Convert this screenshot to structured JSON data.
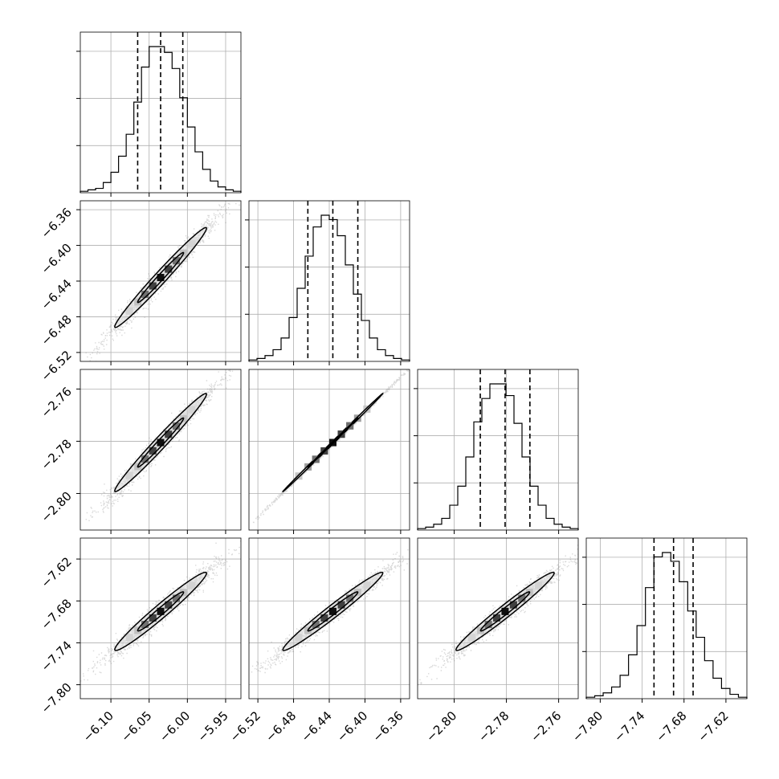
{
  "chart_data": {
    "type": "corner",
    "grid": true,
    "quantiles": [
      0.16,
      0.5,
      0.84
    ],
    "parameters": [
      {
        "mean": -6.035,
        "sd": 0.03,
        "range": [
          -6.14,
          -5.93
        ],
        "ticks": [
          -6.1,
          -6.05,
          -6.0,
          -5.95
        ],
        "tick_labels": [
          "−6.10",
          "−6.05",
          "−6.00",
          "−5.95"
        ],
        "quantile_values": [
          -6.065,
          -6.035,
          -6.006
        ]
      },
      {
        "mean": -6.436,
        "sd": 0.028,
        "range": [
          -6.53,
          -6.35
        ],
        "ticks": [
          -6.52,
          -6.48,
          -6.44,
          -6.4,
          -6.36
        ],
        "tick_labels": [
          "−6.52",
          "−6.48",
          "−6.44",
          "−6.40",
          "−6.36"
        ],
        "quantile_values": [
          -6.464,
          -6.436,
          -6.408
        ]
      },
      {
        "mean": -2.7805,
        "sd": 0.0094,
        "range": [
          -2.814,
          -2.7525
        ],
        "ticks": [
          -2.8,
          -2.78,
          -2.76
        ],
        "tick_labels": [
          "−2.80",
          "−2.78",
          "−2.76"
        ],
        "quantile_values": [
          -2.79,
          -2.7805,
          -2.771
        ]
      },
      {
        "mean": -7.695,
        "sd": 0.028,
        "range": [
          -7.82,
          -7.59
        ],
        "ticks": [
          -7.8,
          -7.74,
          -7.68,
          -7.62
        ],
        "tick_labels": [
          "−7.80",
          "−7.74",
          "−7.68",
          "−7.62"
        ],
        "quantile_values": [
          -7.723,
          -7.695,
          -7.667
        ]
      }
    ],
    "histograms": [
      {
        "param": 0,
        "counts": [
          1,
          2,
          3,
          7,
          14,
          25,
          40,
          62,
          86,
          100,
          100,
          96,
          85,
          65,
          45,
          28,
          16,
          8,
          4,
          2,
          1
        ]
      },
      {
        "param": 1,
        "counts": [
          1,
          2,
          4,
          8,
          16,
          30,
          50,
          72,
          92,
          100,
          97,
          86,
          66,
          46,
          28,
          16,
          8,
          4,
          2,
          1
        ]
      },
      {
        "param": 2,
        "counts": [
          1,
          2,
          4,
          8,
          17,
          30,
          50,
          74,
          90,
          100,
          100,
          92,
          73,
          50,
          30,
          17,
          8,
          4,
          2,
          1
        ]
      },
      {
        "param": 3,
        "counts": [
          1,
          2,
          4,
          8,
          16,
          30,
          50,
          76,
          97,
          100,
          94,
          80,
          60,
          42,
          26,
          14,
          7,
          3,
          1
        ]
      }
    ],
    "correlations": [
      {
        "x": 0,
        "y": 1,
        "rho": 0.985
      },
      {
        "x": 0,
        "y": 2,
        "rho": 0.985
      },
      {
        "x": 1,
        "y": 2,
        "rho": 0.9995
      },
      {
        "x": 0,
        "y": 3,
        "rho": 0.975
      },
      {
        "x": 1,
        "y": 3,
        "rho": 0.98
      },
      {
        "x": 2,
        "y": 3,
        "rho": 0.98
      }
    ]
  }
}
